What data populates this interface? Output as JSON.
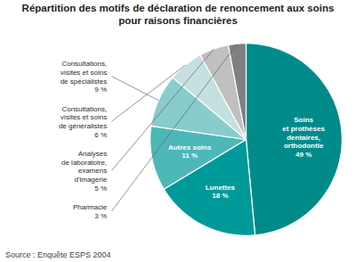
{
  "chart_data": {
    "type": "pie",
    "title": "Répartition des motifs de déclaration de renoncement aux soins\npour raisons financières",
    "categories": [
      "Soins\net prothèses\ndentaires,\northodontie\n49 %",
      "Lunettes\n18 %",
      "Autres soins\n11 %",
      "Consultations,\nvisites et soins\nde spécialistes\n9 %",
      "Consultations,\nvisites et soins\nde généralistes\n6 %",
      "Analyses\nde laboratoire,\nexamens\nd'imagerie\n5 %",
      "Pharmacie\n3 %"
    ],
    "values": [
      49,
      18,
      11,
      9,
      6,
      5,
      3
    ],
    "colors": [
      "#008B8B",
      "#009999",
      "#4DB8B8",
      "#88CCCC",
      "#C5E0E0",
      "#C0C0C0",
      "#808080"
    ],
    "source": "Source : Enquête ESPS 2004"
  }
}
